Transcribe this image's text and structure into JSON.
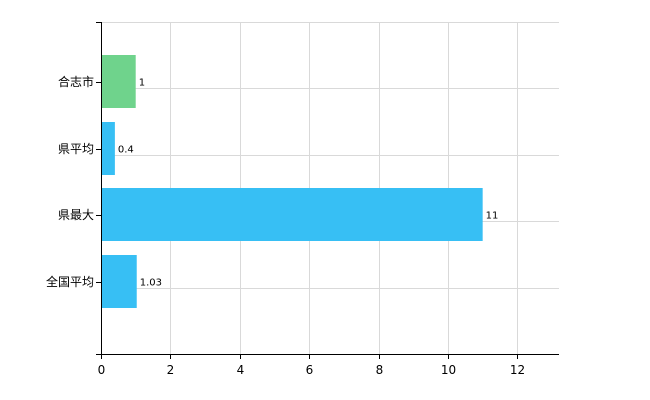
{
  "chart_data": {
    "type": "bar",
    "orientation": "horizontal",
    "title": "",
    "xlabel": "",
    "ylabel": "",
    "categories": [
      "合志市",
      "県平均",
      "県最大",
      "全国平均"
    ],
    "values": [
      1,
      0.4,
      11,
      1.03
    ],
    "data_labels": [
      "1",
      "0.4",
      "11",
      "1.03"
    ],
    "bar_colors": [
      "#6fd38c",
      "#37bff4",
      "#37bff4",
      "#37bff4"
    ],
    "xlim": [
      0,
      13.2
    ],
    "xticks": [
      0,
      2,
      4,
      6,
      8,
      10,
      12
    ],
    "xtick_labels": [
      "0",
      "2",
      "4",
      "6",
      "8",
      "10",
      "12"
    ],
    "grid": true,
    "legend": "none"
  }
}
